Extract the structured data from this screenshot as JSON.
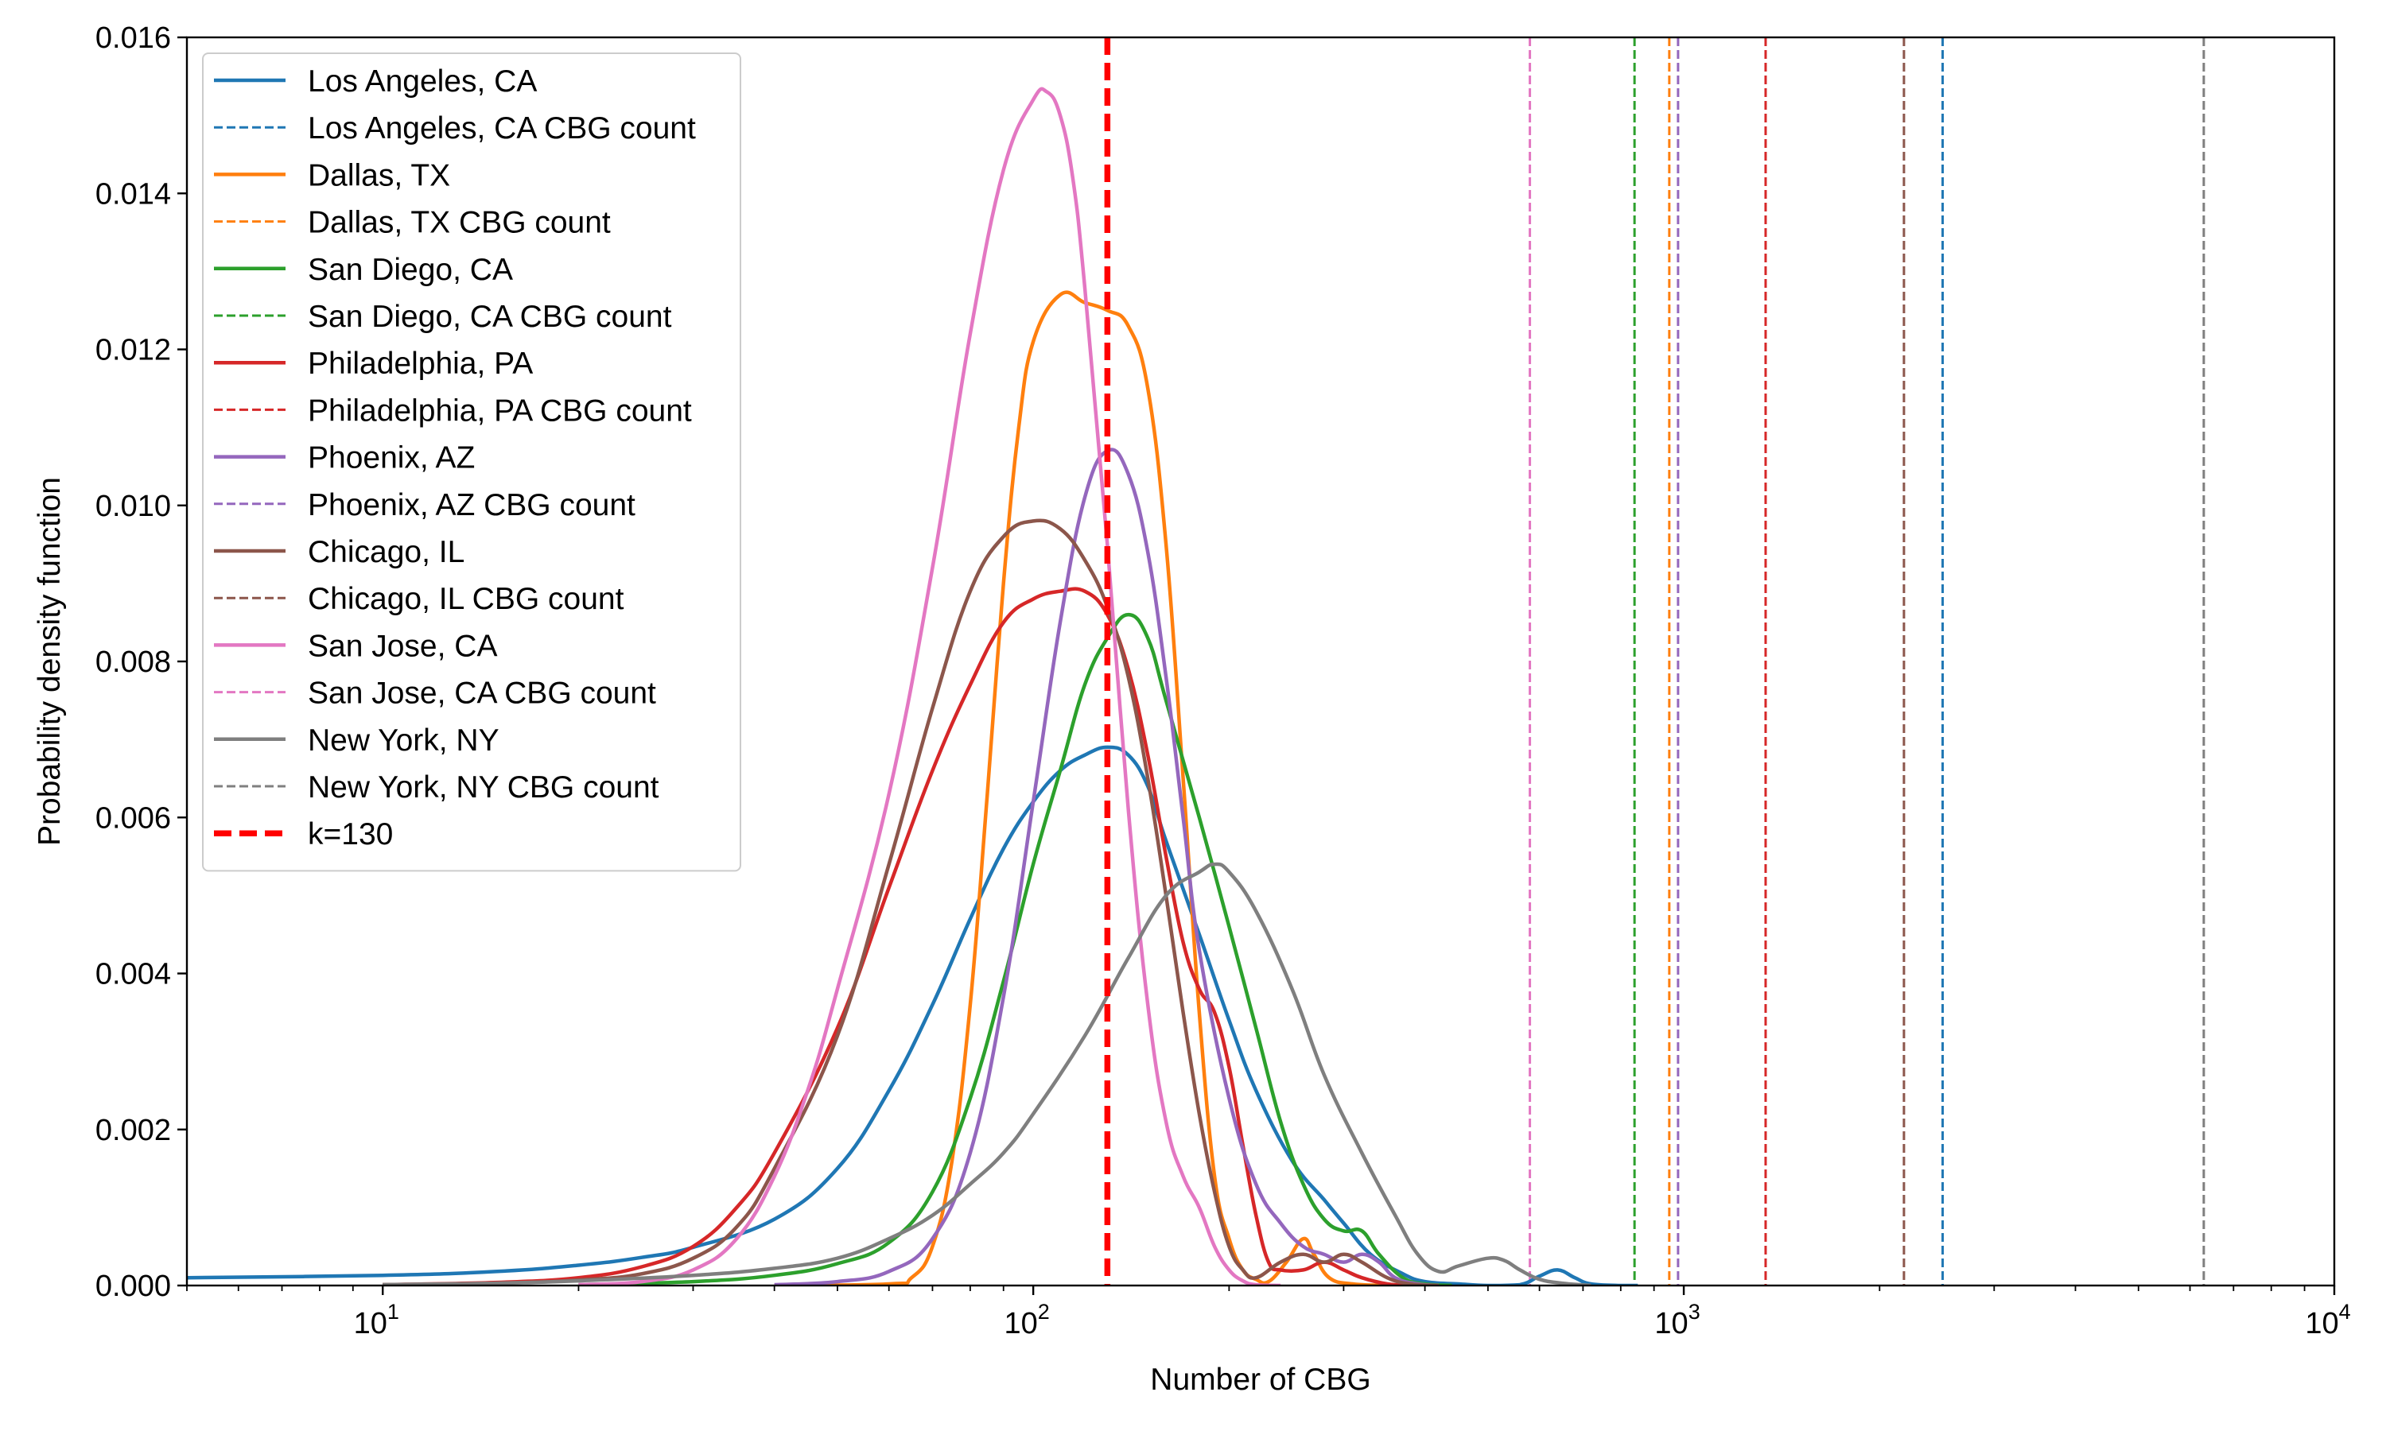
{
  "chart_data": {
    "type": "line",
    "xlabel": "Number of CBG",
    "ylabel": "Probability density function",
    "xscale": "log",
    "xlim": [
      5,
      10000
    ],
    "ylim": [
      0,
      0.016
    ],
    "xticks": [
      {
        "value": 10,
        "base": "10",
        "exp": "1"
      },
      {
        "value": 100,
        "base": "10",
        "exp": "2"
      },
      {
        "value": 1000,
        "base": "10",
        "exp": "3"
      },
      {
        "value": 10000,
        "base": "10",
        "exp": "4"
      }
    ],
    "yticks": [
      {
        "value": 0,
        "label": "0.000"
      },
      {
        "value": 0.002,
        "label": "0.002"
      },
      {
        "value": 0.004,
        "label": "0.004"
      },
      {
        "value": 0.006,
        "label": "0.006"
      },
      {
        "value": 0.008,
        "label": "0.008"
      },
      {
        "value": 0.01,
        "label": "0.010"
      },
      {
        "value": 0.012,
        "label": "0.012"
      },
      {
        "value": 0.014,
        "label": "0.014"
      },
      {
        "value": 0.016,
        "label": "0.016"
      }
    ],
    "grid": false,
    "legend_position": "upper-left",
    "series": [
      {
        "name": "Los Angeles, CA",
        "color": "#1f77b4",
        "cbg_label": "Los Angeles, CA CBG count",
        "cbg_count": 2500,
        "points": [
          [
            5,
            0.0001
          ],
          [
            10,
            0.00013
          ],
          [
            15,
            0.00018
          ],
          [
            20,
            0.00026
          ],
          [
            25,
            0.00036
          ],
          [
            30,
            0.00049
          ],
          [
            40,
            0.00085
          ],
          [
            50,
            0.0015
          ],
          [
            60,
            0.0025
          ],
          [
            70,
            0.0036
          ],
          [
            80,
            0.0047
          ],
          [
            90,
            0.0056
          ],
          [
            100,
            0.0062
          ],
          [
            110,
            0.0066
          ],
          [
            120,
            0.0068
          ],
          [
            130,
            0.0069
          ],
          [
            140,
            0.0068
          ],
          [
            150,
            0.0064
          ],
          [
            160,
            0.0057
          ],
          [
            180,
            0.0045
          ],
          [
            200,
            0.0034
          ],
          [
            220,
            0.0025
          ],
          [
            250,
            0.0016
          ],
          [
            280,
            0.0011
          ],
          [
            300,
            0.0008
          ],
          [
            330,
            0.0004
          ],
          [
            370,
            0.00015
          ],
          [
            400,
            5e-05
          ],
          [
            450,
            2e-05
          ],
          [
            500,
            0.0
          ],
          [
            560,
            1e-05
          ],
          [
            600,
            0.00012
          ],
          [
            640,
            0.0002
          ],
          [
            680,
            0.0001
          ],
          [
            720,
            2e-05
          ],
          [
            800,
            0
          ],
          [
            850,
            0
          ]
        ]
      },
      {
        "name": "Dallas, TX",
        "color": "#ff7f0e",
        "cbg_label": "Dallas, TX CBG count",
        "cbg_count": 950,
        "points": [
          [
            40,
            0
          ],
          [
            60,
            2e-05
          ],
          [
            65,
            0.0001
          ],
          [
            70,
            0.0005
          ],
          [
            75,
            0.0016
          ],
          [
            80,
            0.0036
          ],
          [
            85,
            0.0063
          ],
          [
            90,
            0.009
          ],
          [
            95,
            0.011
          ],
          [
            100,
            0.0121
          ],
          [
            110,
            0.0127
          ],
          [
            120,
            0.0126
          ],
          [
            130,
            0.0125
          ],
          [
            140,
            0.0123
          ],
          [
            150,
            0.0115
          ],
          [
            160,
            0.0095
          ],
          [
            170,
            0.0065
          ],
          [
            180,
            0.0035
          ],
          [
            190,
            0.0014
          ],
          [
            200,
            0.0006
          ],
          [
            210,
            0.0002
          ],
          [
            220,
            8e-05
          ],
          [
            230,
            5e-05
          ],
          [
            245,
            0.0003
          ],
          [
            260,
            0.0006
          ],
          [
            270,
            0.0004
          ],
          [
            285,
            0.0001
          ],
          [
            310,
            2e-05
          ],
          [
            350,
            0
          ]
        ]
      },
      {
        "name": "San Diego, CA",
        "color": "#2ca02c",
        "cbg_label": "San Diego, CA CBG count",
        "cbg_count": 840,
        "points": [
          [
            20,
            1e-05
          ],
          [
            30,
            5e-05
          ],
          [
            40,
            0.00013
          ],
          [
            50,
            0.00028
          ],
          [
            60,
            0.00055
          ],
          [
            70,
            0.0012
          ],
          [
            80,
            0.0024
          ],
          [
            90,
            0.0039
          ],
          [
            100,
            0.0054
          ],
          [
            110,
            0.0066
          ],
          [
            120,
            0.0077
          ],
          [
            130,
            0.0083
          ],
          [
            140,
            0.0086
          ],
          [
            150,
            0.0083
          ],
          [
            160,
            0.0075
          ],
          [
            180,
            0.006
          ],
          [
            200,
            0.0046
          ],
          [
            220,
            0.0033
          ],
          [
            240,
            0.0021
          ],
          [
            260,
            0.0013
          ],
          [
            280,
            0.00085
          ],
          [
            300,
            0.0007
          ],
          [
            320,
            0.0007
          ],
          [
            340,
            0.0004
          ],
          [
            370,
            0.0001
          ],
          [
            400,
            2e-05
          ],
          [
            440,
            0
          ]
        ]
      },
      {
        "name": "Philadelphia, PA",
        "color": "#d62728",
        "cbg_label": "Philadelphia, PA CBG count",
        "cbg_count": 1336,
        "points": [
          [
            10,
            1e-05
          ],
          [
            15,
            4e-05
          ],
          [
            20,
            0.0001
          ],
          [
            25,
            0.00024
          ],
          [
            30,
            0.0005
          ],
          [
            35,
            0.001
          ],
          [
            40,
            0.0017
          ],
          [
            50,
            0.0033
          ],
          [
            60,
            0.0051
          ],
          [
            70,
            0.0066
          ],
          [
            80,
            0.0077
          ],
          [
            90,
            0.0085
          ],
          [
            100,
            0.0088
          ],
          [
            110,
            0.0089
          ],
          [
            120,
            0.0089
          ],
          [
            130,
            0.0086
          ],
          [
            140,
            0.0079
          ],
          [
            150,
            0.0068
          ],
          [
            160,
            0.0055
          ],
          [
            170,
            0.0044
          ],
          [
            180,
            0.0038
          ],
          [
            190,
            0.0035
          ],
          [
            200,
            0.0028
          ],
          [
            210,
            0.0018
          ],
          [
            220,
            0.0009
          ],
          [
            230,
            0.0003
          ],
          [
            240,
            0.0002
          ],
          [
            260,
            0.0002
          ],
          [
            280,
            0.0003
          ],
          [
            300,
            0.0002
          ],
          [
            320,
            0.0001
          ],
          [
            350,
            2e-05
          ],
          [
            380,
            0
          ]
        ]
      },
      {
        "name": "Phoenix, AZ",
        "color": "#9467bd",
        "cbg_label": "Phoenix, AZ CBG count",
        "cbg_count": 980,
        "points": [
          [
            40,
            1e-05
          ],
          [
            50,
            5e-05
          ],
          [
            60,
            0.00018
          ],
          [
            70,
            0.0006
          ],
          [
            80,
            0.0017
          ],
          [
            90,
            0.0037
          ],
          [
            100,
            0.0062
          ],
          [
            110,
            0.0085
          ],
          [
            120,
            0.0101
          ],
          [
            130,
            0.0107
          ],
          [
            140,
            0.0104
          ],
          [
            150,
            0.0094
          ],
          [
            160,
            0.0078
          ],
          [
            170,
            0.006
          ],
          [
            180,
            0.0043
          ],
          [
            200,
            0.0024
          ],
          [
            220,
            0.0013
          ],
          [
            240,
            0.0008
          ],
          [
            260,
            0.0005
          ],
          [
            280,
            0.0004
          ],
          [
            300,
            0.0003
          ],
          [
            320,
            0.0004
          ],
          [
            340,
            0.0003
          ],
          [
            360,
            0.0001
          ],
          [
            390,
            2e-05
          ],
          [
            420,
            0
          ]
        ]
      },
      {
        "name": "Chicago, IL",
        "color": "#8c564b",
        "cbg_label": "Chicago, IL CBG count",
        "cbg_count": 2180,
        "points": [
          [
            10,
            1e-05
          ],
          [
            15,
            3e-05
          ],
          [
            20,
            7e-05
          ],
          [
            25,
            0.00015
          ],
          [
            30,
            0.00035
          ],
          [
            35,
            0.00075
          ],
          [
            40,
            0.0015
          ],
          [
            50,
            0.0032
          ],
          [
            60,
            0.0054
          ],
          [
            70,
            0.0074
          ],
          [
            80,
            0.0089
          ],
          [
            90,
            0.0096
          ],
          [
            100,
            0.0098
          ],
          [
            110,
            0.0097
          ],
          [
            120,
            0.0093
          ],
          [
            130,
            0.0087
          ],
          [
            140,
            0.0078
          ],
          [
            150,
            0.0065
          ],
          [
            160,
            0.005
          ],
          [
            170,
            0.0035
          ],
          [
            180,
            0.0022
          ],
          [
            190,
            0.0012
          ],
          [
            200,
            0.0005
          ],
          [
            210,
            0.0002
          ],
          [
            220,
            0.0001
          ],
          [
            240,
            0.0003
          ],
          [
            260,
            0.0004
          ],
          [
            280,
            0.0003
          ],
          [
            300,
            0.0004
          ],
          [
            320,
            0.0003
          ],
          [
            350,
            0.0001
          ],
          [
            380,
            2e-05
          ],
          [
            420,
            0
          ]
        ]
      },
      {
        "name": "San Jose, CA",
        "color": "#e377c2",
        "cbg_label": "San Jose, CA CBG count",
        "cbg_count": 580,
        "points": [
          [
            20,
            1e-05
          ],
          [
            25,
            5e-05
          ],
          [
            30,
            0.0002
          ],
          [
            35,
            0.0006
          ],
          [
            40,
            0.0014
          ],
          [
            45,
            0.0025
          ],
          [
            50,
            0.0038
          ],
          [
            60,
            0.0063
          ],
          [
            70,
            0.0092
          ],
          [
            80,
            0.0122
          ],
          [
            90,
            0.0143
          ],
          [
            100,
            0.0152
          ],
          [
            105,
            0.0153
          ],
          [
            110,
            0.015
          ],
          [
            115,
            0.0142
          ],
          [
            120,
            0.0128
          ],
          [
            130,
            0.0095
          ],
          [
            140,
            0.0061
          ],
          [
            150,
            0.0036
          ],
          [
            160,
            0.0021
          ],
          [
            170,
            0.0014
          ],
          [
            180,
            0.001
          ],
          [
            190,
            0.0005
          ],
          [
            200,
            0.0002
          ],
          [
            210,
            6e-05
          ],
          [
            220,
            1e-05
          ],
          [
            240,
            0
          ]
        ]
      },
      {
        "name": "New York, NY",
        "color": "#7f7f7f",
        "cbg_label": "New York, NY CBG count",
        "cbg_count": 6300,
        "points": [
          [
            10,
            1e-05
          ],
          [
            15,
            3e-05
          ],
          [
            20,
            6e-05
          ],
          [
            30,
            0.00013
          ],
          [
            40,
            0.00022
          ],
          [
            50,
            0.00035
          ],
          [
            60,
            0.0006
          ],
          [
            70,
            0.0009
          ],
          [
            80,
            0.0013
          ],
          [
            90,
            0.0017
          ],
          [
            100,
            0.0022
          ],
          [
            120,
            0.0032
          ],
          [
            140,
            0.0042
          ],
          [
            160,
            0.005
          ],
          [
            180,
            0.0053
          ],
          [
            190,
            0.0054
          ],
          [
            200,
            0.0053
          ],
          [
            220,
            0.0048
          ],
          [
            250,
            0.0038
          ],
          [
            280,
            0.0027
          ],
          [
            320,
            0.0017
          ],
          [
            360,
            0.0009
          ],
          [
            390,
            0.0004
          ],
          [
            420,
            0.00018
          ],
          [
            450,
            0.00025
          ],
          [
            500,
            0.00035
          ],
          [
            530,
            0.00032
          ],
          [
            560,
            0.0002
          ],
          [
            600,
            8e-05
          ],
          [
            650,
            3e-05
          ],
          [
            720,
            0
          ]
        ]
      }
    ],
    "reference_line": {
      "label": "k=130",
      "value": 130,
      "color": "#ff0000"
    }
  }
}
